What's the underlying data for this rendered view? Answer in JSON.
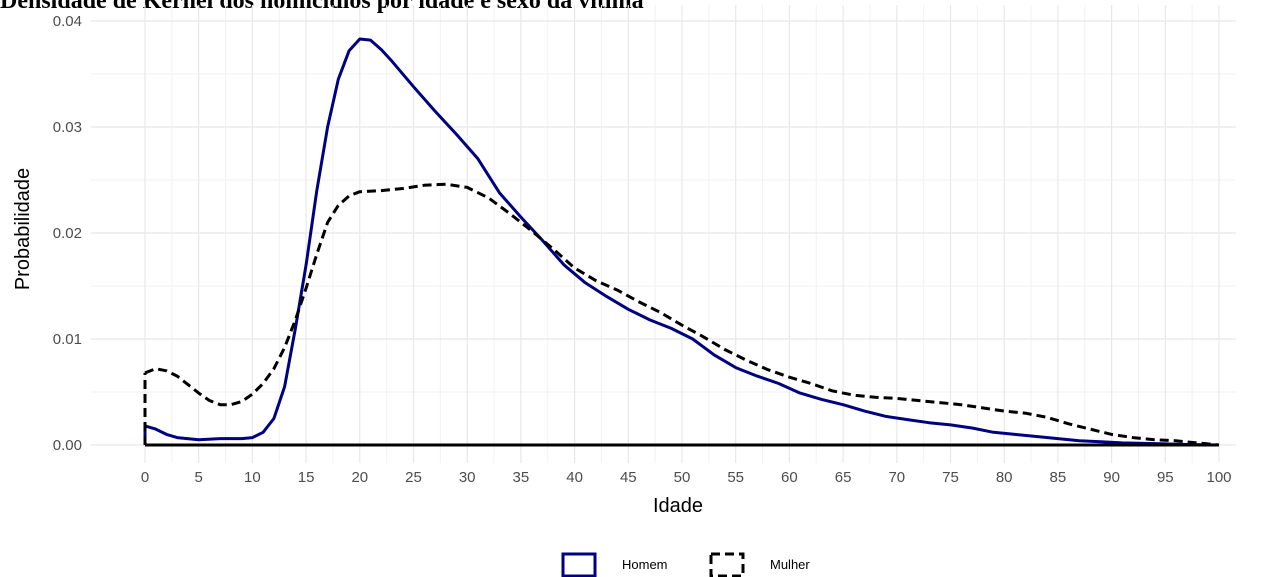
{
  "chart_data": {
    "type": "line",
    "title": "Densidade de Kernel dos homicídios por idade e sexo da vítima",
    "xlabel": "Idade",
    "ylabel": "Probabilidade",
    "xlim": [
      0,
      100
    ],
    "ylim": [
      0,
      0.04
    ],
    "x_ticks": [
      0,
      5,
      10,
      15,
      20,
      25,
      30,
      35,
      40,
      45,
      50,
      55,
      60,
      65,
      70,
      75,
      80,
      85,
      90,
      95,
      100
    ],
    "y_ticks": [
      0,
      0.01,
      0.02,
      0.03,
      0.04
    ],
    "y_tick_labels": [
      "0.00",
      "0.01",
      "0.02",
      "0.03",
      "0.04"
    ],
    "grid": true,
    "legend_position": "bottom",
    "series": [
      {
        "name": "Homem",
        "color": "#000080",
        "dash": "solid",
        "points": [
          [
            0,
            0.0018
          ],
          [
            1,
            0.0015
          ],
          [
            2,
            0.001
          ],
          [
            3,
            0.0007
          ],
          [
            5,
            0.0005
          ],
          [
            7,
            0.0006
          ],
          [
            9,
            0.0006
          ],
          [
            10,
            0.0007
          ],
          [
            11,
            0.0012
          ],
          [
            12,
            0.0025
          ],
          [
            13,
            0.0055
          ],
          [
            14,
            0.011
          ],
          [
            15,
            0.017
          ],
          [
            16,
            0.024
          ],
          [
            17,
            0.03
          ],
          [
            18,
            0.0345
          ],
          [
            19,
            0.0372
          ],
          [
            20,
            0.0383
          ],
          [
            21,
            0.0382
          ],
          [
            22,
            0.0373
          ],
          [
            23,
            0.0362
          ],
          [
            25,
            0.0338
          ],
          [
            27,
            0.0315
          ],
          [
            29,
            0.0293
          ],
          [
            31,
            0.027
          ],
          [
            33,
            0.0238
          ],
          [
            35,
            0.0215
          ],
          [
            37,
            0.0193
          ],
          [
            39,
            0.017
          ],
          [
            41,
            0.0153
          ],
          [
            43,
            0.014
          ],
          [
            45,
            0.0128
          ],
          [
            47,
            0.0118
          ],
          [
            49,
            0.011
          ],
          [
            51,
            0.01
          ],
          [
            53,
            0.0085
          ],
          [
            55,
            0.0073
          ],
          [
            57,
            0.0065
          ],
          [
            59,
            0.0058
          ],
          [
            61,
            0.0049
          ],
          [
            63,
            0.0043
          ],
          [
            65,
            0.0038
          ],
          [
            67,
            0.0032
          ],
          [
            69,
            0.0027
          ],
          [
            71,
            0.0024
          ],
          [
            73,
            0.0021
          ],
          [
            75,
            0.0019
          ],
          [
            77,
            0.0016
          ],
          [
            79,
            0.0012
          ],
          [
            81,
            0.001
          ],
          [
            83,
            0.0008
          ],
          [
            85,
            0.0006
          ],
          [
            87,
            0.0004
          ],
          [
            89,
            0.0003
          ],
          [
            91,
            0.0002
          ],
          [
            93,
            0.00015
          ],
          [
            95,
            0.0001
          ],
          [
            97,
            5e-05
          ],
          [
            100,
            0.0
          ]
        ]
      },
      {
        "name": "Mulher",
        "color": "#000000",
        "dash": "dashed",
        "points": [
          [
            0,
            0.0068
          ],
          [
            1,
            0.0072
          ],
          [
            2,
            0.007
          ],
          [
            3,
            0.0065
          ],
          [
            4,
            0.0057
          ],
          [
            5,
            0.0049
          ],
          [
            6,
            0.0042
          ],
          [
            7,
            0.0038
          ],
          [
            8,
            0.0038
          ],
          [
            9,
            0.0041
          ],
          [
            10,
            0.0048
          ],
          [
            11,
            0.0058
          ],
          [
            12,
            0.0072
          ],
          [
            13,
            0.0092
          ],
          [
            14,
            0.0118
          ],
          [
            15,
            0.0148
          ],
          [
            16,
            0.018
          ],
          [
            17,
            0.021
          ],
          [
            18,
            0.0226
          ],
          [
            19,
            0.0235
          ],
          [
            20,
            0.0239
          ],
          [
            22,
            0.024
          ],
          [
            24,
            0.0242
          ],
          [
            26,
            0.0245
          ],
          [
            28,
            0.0246
          ],
          [
            30,
            0.0243
          ],
          [
            32,
            0.0233
          ],
          [
            34,
            0.0218
          ],
          [
            36,
            0.0202
          ],
          [
            38,
            0.0185
          ],
          [
            40,
            0.0167
          ],
          [
            42,
            0.0155
          ],
          [
            44,
            0.0146
          ],
          [
            46,
            0.0135
          ],
          [
            48,
            0.0125
          ],
          [
            50,
            0.0113
          ],
          [
            52,
            0.0102
          ],
          [
            54,
            0.009
          ],
          [
            56,
            0.008
          ],
          [
            58,
            0.0071
          ],
          [
            60,
            0.0064
          ],
          [
            62,
            0.0058
          ],
          [
            64,
            0.0051
          ],
          [
            66,
            0.0047
          ],
          [
            68,
            0.0045
          ],
          [
            70,
            0.0044
          ],
          [
            72,
            0.0042
          ],
          [
            74,
            0.004
          ],
          [
            76,
            0.0038
          ],
          [
            78,
            0.0035
          ],
          [
            80,
            0.0032
          ],
          [
            82,
            0.003
          ],
          [
            84,
            0.0026
          ],
          [
            86,
            0.002
          ],
          [
            88,
            0.0015
          ],
          [
            90,
            0.001
          ],
          [
            92,
            0.0007
          ],
          [
            94,
            0.0005
          ],
          [
            96,
            0.0004
          ],
          [
            98,
            0.0002
          ],
          [
            100,
            0.0
          ]
        ]
      }
    ]
  }
}
